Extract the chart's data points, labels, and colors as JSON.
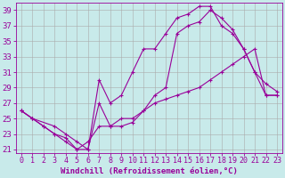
{
  "background_color": "#c8eaea",
  "line_color": "#990099",
  "grid_color": "#aaaaaa",
  "xlabel": "Windchill (Refroidissement éolien,°C)",
  "xlabel_fontsize": 6.5,
  "tick_fontsize": 6.0,
  "xlim": [
    -0.5,
    23.5
  ],
  "ylim": [
    20.5,
    40.0
  ],
  "yticks": [
    21,
    23,
    25,
    27,
    29,
    31,
    33,
    35,
    37,
    39
  ],
  "xticks": [
    0,
    1,
    2,
    3,
    4,
    5,
    6,
    7,
    8,
    9,
    10,
    11,
    12,
    13,
    14,
    15,
    16,
    17,
    18,
    19,
    20,
    21,
    22,
    23
  ],
  "series1_x": [
    0,
    1,
    2,
    3,
    4,
    5,
    6,
    7,
    8,
    9,
    10,
    11,
    12,
    13,
    14,
    15,
    16,
    17,
    18,
    19,
    20,
    21,
    22,
    23
  ],
  "series1_y": [
    26,
    25,
    24,
    23,
    22,
    21,
    22,
    24,
    24,
    25,
    25,
    26,
    27,
    27.5,
    28,
    28.5,
    29,
    30,
    31,
    32,
    33,
    34,
    28,
    28
  ],
  "series2_x": [
    0,
    1,
    2,
    3,
    4,
    5,
    6,
    7,
    8,
    9,
    10,
    11,
    12,
    13,
    14,
    15,
    16,
    17,
    18,
    19,
    20,
    21,
    22,
    23
  ],
  "series2_y": [
    26,
    25,
    24,
    23,
    22.5,
    21,
    21,
    30,
    27,
    28,
    31,
    34,
    34,
    36,
    38,
    38.5,
    39.5,
    39.5,
    37,
    36,
    34,
    31,
    29.5,
    28.5
  ],
  "series3_x": [
    0,
    1,
    3,
    4,
    5,
    6,
    7,
    8,
    9,
    10,
    11,
    12,
    13,
    14,
    15,
    16,
    17,
    18,
    19,
    20,
    21,
    22,
    23
  ],
  "series3_y": [
    26,
    25,
    24,
    23,
    22,
    21,
    27,
    24,
    24,
    24.5,
    26,
    28,
    29,
    36,
    37,
    37.5,
    39,
    38,
    36.5,
    34,
    31,
    28,
    28
  ]
}
